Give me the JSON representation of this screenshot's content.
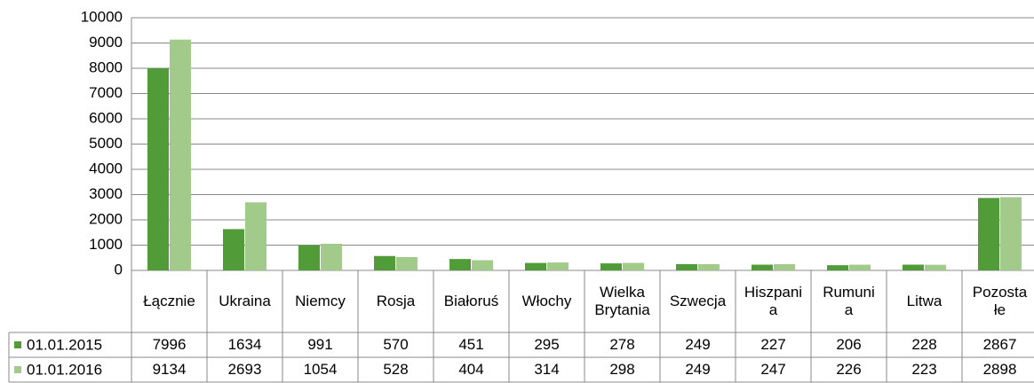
{
  "chart_data": {
    "type": "bar",
    "categories": [
      "Łącznie",
      "Ukraina",
      "Niemcy",
      "Rosja",
      "Białoruś",
      "Włochy",
      "Wielka\nBrytania",
      "Szwecja",
      "Hiszpani\na",
      "Rumuni\na",
      "Litwa",
      "Pozosta\nłe"
    ],
    "series": [
      {
        "name": "01.01.2015",
        "color": "#519c38",
        "values": [
          7996,
          1634,
          991,
          570,
          451,
          295,
          278,
          249,
          227,
          206,
          228,
          2867
        ]
      },
      {
        "name": "01.01.2016",
        "color": "#a2cb8b",
        "values": [
          9134,
          2693,
          1054,
          528,
          404,
          314,
          298,
          249,
          247,
          226,
          223,
          2898
        ]
      }
    ],
    "ylim": [
      0,
      10000
    ],
    "yticks": [
      0,
      1000,
      2000,
      3000,
      4000,
      5000,
      6000,
      7000,
      8000,
      9000,
      10000
    ],
    "grid": true
  }
}
